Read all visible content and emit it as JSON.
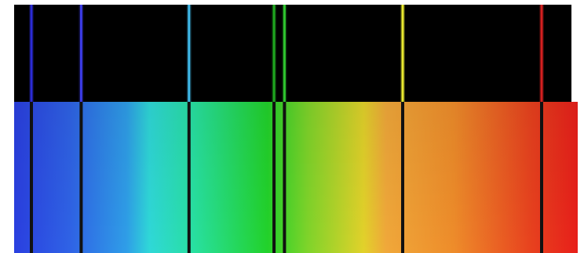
{
  "figure": {
    "emission_spectrum": {
      "background": "#000000",
      "lines": [
        {
          "color": "#2b2bd6",
          "wavelength_nm": 410
        },
        {
          "color": "#3b3be6",
          "wavelength_nm": 434
        },
        {
          "color": "#3fb8e8",
          "wavelength_nm": 486
        },
        {
          "color": "#1fa81f",
          "wavelength_nm": 527
        },
        {
          "color": "#2ec42e",
          "wavelength_nm": 532
        },
        {
          "color": "#e8e830",
          "wavelength_nm": 589
        },
        {
          "color": "#d42020",
          "wavelength_nm": 656
        }
      ]
    },
    "absorption_spectrum": {
      "gradient_stops": [
        {
          "offset": 0.0,
          "color": "#2a3fe0"
        },
        {
          "offset": 0.1,
          "color": "#2f63e6"
        },
        {
          "offset": 0.2,
          "color": "#2f9ee8"
        },
        {
          "offset": 0.24,
          "color": "#2fd8d8"
        },
        {
          "offset": 0.32,
          "color": "#28e0a0"
        },
        {
          "offset": 0.45,
          "color": "#22d22a"
        },
        {
          "offset": 0.52,
          "color": "#7ed42a"
        },
        {
          "offset": 0.62,
          "color": "#e2d22a"
        },
        {
          "offset": 0.66,
          "color": "#f0a83a"
        },
        {
          "offset": 0.78,
          "color": "#ee8c2a"
        },
        {
          "offset": 0.92,
          "color": "#e8401e"
        },
        {
          "offset": 1.0,
          "color": "#e81f1a"
        }
      ],
      "line_color": "#111111"
    }
  }
}
